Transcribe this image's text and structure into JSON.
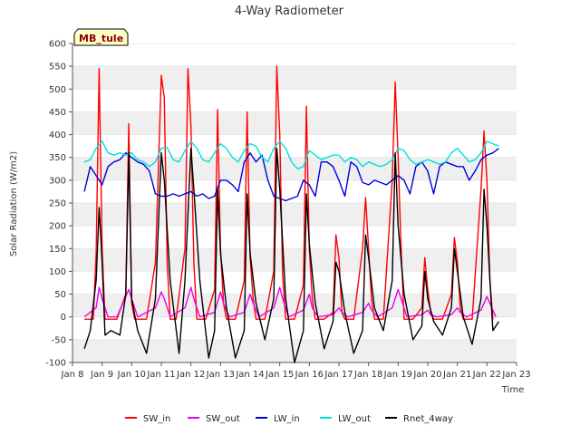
{
  "chart_data": {
    "type": "line",
    "title": "4-Way Radiometer",
    "xlabel": "Time",
    "ylabel": "Solar Radiation (W/m2)",
    "site_label": "MB_tule",
    "x_unit": "days",
    "x_ticks": [
      "Jan 8",
      "Jan 9",
      "Jan 10",
      "Jan 11",
      "Jan 12",
      "Jan 13",
      "Jan 14",
      "Jan 15",
      "Jan 16",
      "Jan 17",
      "Jan 18",
      "Jan 19",
      "Jan 20",
      "Jan 21",
      "Jan 22",
      "Jan 23"
    ],
    "xlim": [
      8,
      23
    ],
    "ylim": [
      -100,
      600
    ],
    "y_ticks": [
      -100,
      -50,
      0,
      50,
      100,
      150,
      200,
      250,
      300,
      350,
      400,
      450,
      500,
      550,
      600
    ],
    "grid": "horizontal bands",
    "legend_position": "bottom",
    "series": [
      {
        "name": "SW_in",
        "color": "#ff0000",
        "x": [
          8.4,
          8.7,
          8.8,
          8.9,
          9.0,
          9.1,
          9.2,
          9.5,
          9.8,
          9.9,
          10.0,
          10.1,
          10.2,
          10.5,
          10.8,
          11.0,
          11.1,
          11.2,
          11.3,
          11.5,
          11.8,
          11.9,
          12.0,
          12.1,
          12.2,
          12.5,
          12.8,
          12.9,
          13.0,
          13.1,
          13.2,
          13.5,
          13.8,
          13.9,
          14.0,
          14.1,
          14.2,
          14.5,
          14.8,
          14.9,
          15.0,
          15.1,
          15.2,
          15.5,
          15.8,
          15.9,
          16.0,
          16.1,
          16.2,
          16.5,
          16.8,
          16.9,
          17.0,
          17.1,
          17.2,
          17.5,
          17.8,
          17.9,
          18.0,
          18.1,
          18.2,
          18.5,
          18.8,
          18.9,
          19.0,
          19.1,
          19.2,
          19.5,
          19.8,
          19.9,
          20.0,
          20.1,
          20.2,
          20.5,
          20.8,
          20.9,
          21.0,
          21.1,
          21.2,
          21.5,
          21.8,
          21.9,
          22.0,
          22.1,
          22.2
        ],
        "y": [
          -5,
          -5,
          140,
          545,
          150,
          -5,
          -5,
          -5,
          50,
          424,
          30,
          -5,
          -5,
          -5,
          120,
          530,
          480,
          120,
          -5,
          -5,
          150,
          545,
          420,
          120,
          -5,
          -5,
          60,
          455,
          150,
          30,
          -5,
          -5,
          80,
          450,
          130,
          40,
          -5,
          -5,
          100,
          550,
          400,
          90,
          -5,
          -5,
          70,
          462,
          150,
          40,
          -5,
          -5,
          10,
          180,
          130,
          10,
          -5,
          -5,
          150,
          262,
          150,
          40,
          -5,
          -5,
          300,
          515,
          350,
          150,
          -5,
          -5,
          20,
          130,
          60,
          10,
          -5,
          -5,
          50,
          174,
          120,
          20,
          -5,
          -5,
          280,
          408,
          300,
          80,
          -5
        ]
      },
      {
        "name": "SW_out",
        "color": "#ee00ee",
        "x": [
          8.4,
          8.8,
          8.9,
          9.0,
          9.2,
          9.5,
          9.9,
          10.0,
          10.2,
          10.8,
          11.0,
          11.1,
          11.3,
          11.8,
          12.0,
          12.1,
          12.3,
          12.8,
          13.0,
          13.1,
          13.3,
          13.8,
          14.0,
          14.1,
          14.3,
          14.8,
          15.0,
          15.1,
          15.3,
          15.8,
          16.0,
          16.1,
          16.3,
          16.8,
          17.0,
          17.1,
          17.3,
          17.8,
          18.0,
          18.1,
          18.3,
          18.8,
          19.0,
          19.1,
          19.3,
          19.8,
          20.0,
          20.1,
          20.3,
          20.8,
          21.0,
          21.1,
          21.3,
          21.8,
          22.0,
          22.1,
          22.3
        ],
        "y": [
          0,
          20,
          65,
          40,
          0,
          0,
          60,
          40,
          0,
          20,
          55,
          40,
          0,
          20,
          65,
          40,
          0,
          10,
          55,
          30,
          0,
          10,
          50,
          30,
          0,
          20,
          65,
          40,
          0,
          15,
          50,
          20,
          0,
          5,
          20,
          10,
          0,
          10,
          30,
          15,
          0,
          20,
          60,
          40,
          0,
          5,
          15,
          5,
          0,
          5,
          20,
          10,
          0,
          15,
          45,
          30,
          0
        ]
      },
      {
        "name": "LW_in",
        "color": "#0000dd",
        "x": [
          8.4,
          8.6,
          8.8,
          9.0,
          9.2,
          9.4,
          9.6,
          9.8,
          10.0,
          10.2,
          10.4,
          10.6,
          10.8,
          11.0,
          11.2,
          11.4,
          11.6,
          11.8,
          12.0,
          12.2,
          12.4,
          12.6,
          12.8,
          13.0,
          13.2,
          13.4,
          13.6,
          13.8,
          14.0,
          14.2,
          14.4,
          14.6,
          14.8,
          15.0,
          15.2,
          15.4,
          15.6,
          15.8,
          16.0,
          16.2,
          16.4,
          16.6,
          16.8,
          17.0,
          17.2,
          17.4,
          17.6,
          17.8,
          18.0,
          18.2,
          18.4,
          18.6,
          18.8,
          19.0,
          19.2,
          19.4,
          19.6,
          19.8,
          20.0,
          20.2,
          20.4,
          20.6,
          20.8,
          21.0,
          21.2,
          21.4,
          21.6,
          21.8,
          22.0,
          22.2,
          22.4
        ],
        "y": [
          275,
          330,
          310,
          290,
          330,
          340,
          345,
          360,
          350,
          340,
          335,
          320,
          270,
          265,
          265,
          270,
          265,
          270,
          275,
          265,
          270,
          260,
          265,
          300,
          300,
          290,
          275,
          340,
          360,
          340,
          355,
          300,
          265,
          260,
          255,
          260,
          265,
          300,
          290,
          265,
          340,
          340,
          330,
          300,
          265,
          340,
          330,
          295,
          290,
          300,
          295,
          290,
          300,
          310,
          300,
          270,
          330,
          340,
          320,
          270,
          330,
          340,
          335,
          330,
          330,
          300,
          320,
          345,
          355,
          360,
          370
        ]
      },
      {
        "name": "LW_out",
        "color": "#00e0e0",
        "x": [
          8.4,
          8.6,
          8.8,
          9.0,
          9.2,
          9.4,
          9.6,
          9.8,
          10.0,
          10.2,
          10.4,
          10.6,
          10.8,
          11.0,
          11.2,
          11.4,
          11.6,
          11.8,
          12.0,
          12.2,
          12.4,
          12.6,
          12.8,
          13.0,
          13.2,
          13.4,
          13.6,
          13.8,
          14.0,
          14.2,
          14.4,
          14.6,
          14.8,
          15.0,
          15.2,
          15.4,
          15.6,
          15.8,
          16.0,
          16.2,
          16.4,
          16.6,
          16.8,
          17.0,
          17.2,
          17.4,
          17.6,
          17.8,
          18.0,
          18.2,
          18.4,
          18.6,
          18.8,
          19.0,
          19.2,
          19.4,
          19.6,
          19.8,
          20.0,
          20.2,
          20.4,
          20.6,
          20.8,
          21.0,
          21.2,
          21.4,
          21.6,
          21.8,
          22.0,
          22.2,
          22.4
        ],
        "y": [
          340,
          345,
          370,
          385,
          360,
          355,
          360,
          355,
          360,
          345,
          340,
          330,
          340,
          370,
          372,
          345,
          340,
          365,
          385,
          370,
          345,
          340,
          360,
          380,
          370,
          350,
          340,
          365,
          380,
          375,
          350,
          340,
          370,
          385,
          370,
          340,
          325,
          330,
          365,
          355,
          345,
          350,
          355,
          355,
          340,
          350,
          345,
          330,
          340,
          335,
          330,
          335,
          345,
          370,
          365,
          345,
          335,
          340,
          345,
          340,
          335,
          340,
          360,
          370,
          355,
          340,
          345,
          360,
          385,
          380,
          375
        ]
      },
      {
        "name": "Rnet_4way",
        "color": "#000000",
        "x": [
          8.4,
          8.6,
          8.8,
          8.9,
          9.0,
          9.1,
          9.3,
          9.6,
          9.8,
          9.9,
          10.0,
          10.2,
          10.5,
          10.8,
          11.0,
          11.1,
          11.3,
          11.6,
          11.8,
          12.0,
          12.1,
          12.3,
          12.6,
          12.8,
          12.9,
          13.0,
          13.2,
          13.5,
          13.8,
          13.9,
          14.0,
          14.2,
          14.5,
          14.8,
          14.9,
          15.0,
          15.2,
          15.5,
          15.8,
          15.9,
          16.0,
          16.2,
          16.5,
          16.8,
          16.9,
          17.0,
          17.2,
          17.5,
          17.8,
          17.9,
          18.0,
          18.2,
          18.5,
          18.8,
          18.9,
          19.0,
          19.2,
          19.5,
          19.8,
          19.9,
          20.0,
          20.2,
          20.5,
          20.8,
          20.9,
          21.0,
          21.2,
          21.5,
          21.8,
          21.9,
          22.0,
          22.1,
          22.2,
          22.4
        ],
        "y": [
          -70,
          -30,
          80,
          240,
          120,
          -40,
          -30,
          -40,
          50,
          360,
          40,
          -30,
          -80,
          40,
          360,
          300,
          80,
          -80,
          80,
          370,
          280,
          80,
          -90,
          -30,
          280,
          140,
          20,
          -90,
          -30,
          270,
          140,
          30,
          -50,
          40,
          370,
          280,
          40,
          -100,
          -30,
          270,
          160,
          30,
          -70,
          -10,
          120,
          100,
          10,
          -80,
          -30,
          180,
          130,
          20,
          -30,
          80,
          360,
          200,
          50,
          -50,
          -20,
          100,
          40,
          -10,
          -40,
          20,
          150,
          100,
          0,
          -60,
          40,
          280,
          200,
          80,
          -30,
          -10
        ]
      }
    ]
  }
}
